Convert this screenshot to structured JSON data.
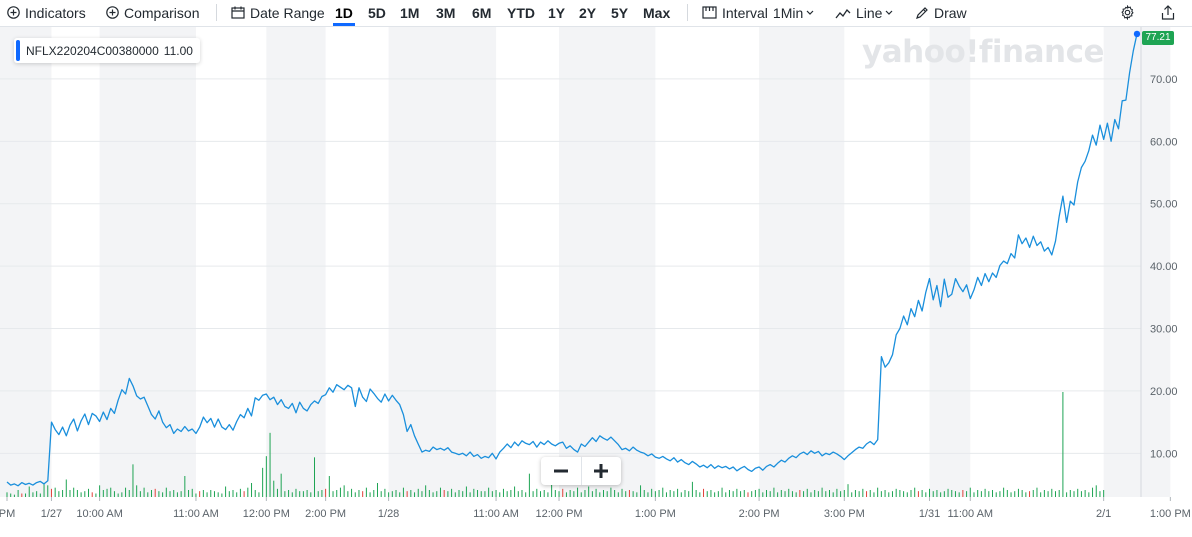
{
  "toolbar": {
    "indicators_label": "Indicators",
    "comparison_label": "Comparison",
    "date_range_label": "Date Range",
    "ranges": [
      "1D",
      "5D",
      "1M",
      "3M",
      "6M",
      "YTD",
      "1Y",
      "2Y",
      "5Y",
      "Max"
    ],
    "active_range": "1D",
    "interval_label": "Interval",
    "interval_value": "1Min",
    "chart_type_label": "Line",
    "draw_label": "Draw"
  },
  "legend": {
    "symbol": "NFLX220204C00380000",
    "value": "11.00"
  },
  "watermark": "yahoo!finance",
  "last_price_label": "77.21",
  "colors": {
    "line": "#1a8fdc",
    "up_volume": "#1ea453",
    "down_volume": "#e2413a",
    "accent": "#0f69ff",
    "shade": "#f3f4f6"
  },
  "chart_data": {
    "type": "line",
    "title": "",
    "series": [
      {
        "name": "NFLX220204C00380000",
        "values": [
          5.4,
          4.9,
          5.1,
          4.8,
          5.3,
          5.0,
          5.2,
          4.9,
          5.3,
          5.5,
          5.1,
          5.6,
          15.0,
          13.8,
          13.0,
          14.2,
          12.8,
          14.5,
          15.5,
          13.6,
          15.2,
          16.3,
          14.6,
          16.4,
          16.0,
          15.1,
          16.6,
          15.4,
          17.2,
          16.4,
          18.5,
          20.2,
          19.5,
          22.0,
          20.8,
          19.2,
          18.7,
          19.0,
          17.6,
          16.2,
          15.5,
          16.8,
          15.0,
          14.1,
          14.6,
          13.2,
          13.9,
          13.5,
          14.3,
          13.6,
          13.9,
          13.2,
          14.2,
          15.8,
          14.9,
          15.6,
          14.2,
          15.5,
          14.2,
          13.8,
          14.6,
          13.7,
          15.1,
          16.2,
          15.7,
          17.2,
          16.0,
          18.9,
          18.5,
          19.3,
          19.5,
          18.6,
          19.0,
          17.8,
          18.6,
          17.5,
          17.2,
          18.0,
          16.5,
          18.2,
          17.2,
          16.8,
          17.8,
          18.4,
          18.0,
          19.1,
          19.4,
          20.5,
          19.8,
          21.0,
          20.6,
          20.2,
          20.9,
          20.5,
          17.5,
          20.5,
          19.0,
          18.3,
          20.3,
          19.6,
          18.8,
          18.2,
          19.5,
          18.4,
          19.3,
          18.5,
          17.8,
          16.2,
          13.5,
          14.6,
          12.8,
          11.5,
          10.2,
          10.5,
          10.3,
          11.0,
          10.6,
          10.8,
          10.5,
          10.9,
          10.2,
          10.0,
          9.8,
          10.0,
          9.6,
          10.2,
          9.5,
          9.8,
          9.2,
          9.5,
          9.3,
          10.0,
          9.1,
          10.2,
          10.8,
          11.5,
          10.9,
          11.8,
          11.2,
          12.0,
          11.6,
          11.4,
          11.9,
          11.0,
          11.8,
          11.4,
          12.0,
          11.5,
          11.2,
          11.6,
          11.8,
          10.8,
          11.2,
          10.6,
          10.2,
          11.5,
          11.1,
          11.8,
          12.5,
          11.9,
          12.8,
          12.4,
          12.1,
          12.6,
          12.0,
          11.4,
          10.6,
          10.8,
          10.4,
          11.0,
          10.5,
          10.2,
          10.0,
          9.6,
          9.9,
          9.4,
          9.2,
          9.5,
          9.1,
          8.8,
          9.3,
          8.6,
          9.0,
          8.5,
          8.2,
          8.7,
          8.3,
          7.8,
          8.1,
          7.7,
          8.2,
          7.6,
          8.0,
          7.7,
          7.9,
          7.5,
          7.8,
          7.2,
          7.6,
          7.9,
          7.4,
          7.1,
          7.6,
          7.8,
          7.3,
          7.9,
          8.2,
          7.8,
          8.4,
          8.9,
          8.6,
          9.2,
          9.6,
          9.3,
          9.9,
          10.2,
          9.8,
          10.4,
          10.0,
          10.3,
          9.6,
          10.0,
          9.8,
          10.2,
          9.9,
          9.5,
          9.0,
          9.6,
          10.1,
          10.6,
          11.0,
          10.8,
          11.5,
          11.9,
          11.4,
          12.2,
          25.5,
          23.8,
          24.5,
          25.8,
          29.0,
          30.0,
          32.0,
          30.6,
          33.2,
          31.9,
          34.5,
          32.8,
          35.8,
          38.0,
          34.6,
          36.9,
          33.5,
          37.9,
          35.0,
          35.5,
          38.0,
          36.8,
          35.9,
          37.0,
          34.8,
          36.2,
          38.2,
          36.9,
          38.8,
          37.5,
          38.9,
          38.2,
          40.1,
          40.8,
          40.4,
          42.0,
          41.3,
          45.0,
          43.6,
          44.5,
          43.0,
          44.8,
          43.3,
          43.9,
          42.4,
          43.0,
          41.8,
          44.0,
          48.0,
          51.2,
          47.0,
          50.4,
          49.8,
          53.5,
          55.8,
          56.8,
          58.5,
          61.0,
          59.4,
          62.6,
          60.3,
          62.9,
          60.0,
          63.5,
          62.0,
          66.5,
          66.6,
          71.0,
          74.5,
          77.21
        ]
      }
    ],
    "volume": [
      0.4,
      0.3,
      0.2,
      0.6,
      0.3,
      0.3,
      0.9,
      0.4,
      0.5,
      0.3,
      1.2,
      1.0,
      0.7,
      0.8,
      0.5,
      0.6,
      1.5,
      0.6,
      0.8,
      0.6,
      0.4,
      0.5,
      0.7,
      0.4,
      0.3,
      1.0,
      0.6,
      0.7,
      0.8,
      0.5,
      0.3,
      0.4,
      0.8,
      0.6,
      2.8,
      1.0,
      0.5,
      0.8,
      0.4,
      0.6,
      0.7,
      0.5,
      0.4,
      0.8,
      0.5,
      0.6,
      0.4,
      0.5,
      1.8,
      0.6,
      0.7,
      0.3,
      0.5,
      0.6,
      0.4,
      0.6,
      0.5,
      0.4,
      0.3,
      0.9,
      0.5,
      0.6,
      0.4,
      0.7,
      0.5,
      0.8,
      1.2,
      0.6,
      0.4,
      2.5,
      3.5,
      5.5,
      1.4,
      0.7,
      2.0,
      0.5,
      0.6,
      0.4,
      0.7,
      0.5,
      0.5,
      0.6,
      0.4,
      3.4,
      0.5,
      0.6,
      0.7,
      1.8,
      0.5,
      0.6,
      0.8,
      1.0,
      0.5,
      0.7,
      0.4,
      0.6,
      0.5,
      0.8,
      0.4,
      0.6,
      1.2,
      0.5,
      0.7,
      0.4,
      0.5,
      0.6,
      0.4,
      0.8,
      0.5,
      0.6,
      0.4,
      0.7,
      0.5,
      1.0,
      0.6,
      0.4,
      0.5,
      0.8,
      0.6,
      0.5,
      0.7,
      0.4,
      0.6,
      0.5,
      0.9,
      0.4,
      0.7,
      0.6,
      0.5,
      0.5,
      0.8,
      0.5,
      0.6,
      0.4,
      0.7,
      0.5,
      0.6,
      0.9,
      0.5,
      0.6,
      0.4,
      2.0,
      0.5,
      0.7,
      0.5,
      0.6,
      0.4,
      1.3,
      0.6,
      0.5,
      0.7,
      0.4,
      0.6,
      0.5,
      0.8,
      0.4,
      0.6,
      0.9,
      0.5,
      0.7,
      0.4,
      0.6,
      0.5,
      0.8,
      0.6,
      0.4,
      0.7,
      0.5,
      0.6,
      0.5,
      0.4,
      1.0,
      0.6,
      0.4,
      0.7,
      0.5,
      0.6,
      0.8,
      0.4,
      0.6,
      0.5,
      0.7,
      0.4,
      0.6,
      0.5,
      1.3,
      0.6,
      0.4,
      0.7,
      0.5,
      0.6,
      0.4,
      0.5,
      0.8,
      0.4,
      0.6,
      0.5,
      0.7,
      0.5,
      0.6,
      0.4,
      0.5,
      0.6,
      0.7,
      0.4,
      0.6,
      0.5,
      0.8,
      0.4,
      0.6,
      0.5,
      0.7,
      0.5,
      0.4,
      0.6,
      0.5,
      0.7,
      0.4,
      0.6,
      0.5,
      0.8,
      0.5,
      0.6,
      0.4,
      0.7,
      0.5,
      0.6,
      1.1,
      0.4,
      0.6,
      0.5,
      0.7,
      0.5,
      0.6,
      0.4,
      0.8,
      0.5,
      0.6,
      0.4,
      0.5,
      0.7,
      0.6,
      0.5,
      0.4,
      0.6,
      0.8,
      0.5,
      0.6,
      0.4,
      0.7,
      0.5,
      0.6,
      0.4,
      0.5,
      0.7,
      0.6,
      0.5,
      0.4,
      0.6,
      0.5,
      0.8,
      0.4,
      0.6,
      0.5,
      0.7,
      0.5,
      0.6,
      0.4,
      0.5,
      0.8,
      0.6,
      0.4,
      0.5,
      0.7,
      0.6,
      0.4,
      0.5,
      0.6,
      0.8,
      0.4,
      0.6,
      0.5,
      0.7,
      0.5,
      0.6,
      9.0,
      0.4,
      0.6,
      0.5,
      0.7,
      0.5,
      0.6,
      0.4,
      0.8,
      1.0,
      0.5,
      0.6
    ],
    "volume_down": [
      4,
      12,
      23,
      40,
      52,
      64,
      86,
      96,
      108,
      118,
      150,
      168,
      188,
      200,
      214,
      232,
      246,
      258,
      276,
      300
    ],
    "ylim": [
      3,
      78
    ],
    "y_ticks": [
      10,
      20,
      30,
      40,
      50,
      60,
      70
    ],
    "y_tick_labels": [
      "10.00",
      "20.00",
      "30.00",
      "40.00",
      "50.00",
      "60.00",
      "70.00"
    ],
    "x_ticks": [
      0,
      12,
      25,
      51,
      70,
      86,
      103,
      132,
      149,
      175,
      203,
      226,
      249,
      260,
      296,
      314
    ],
    "x_tick_labels": [
      "PM",
      "1/27",
      "10:00 AM",
      "11:00 AM",
      "12:00 PM",
      "2:00 PM",
      "1/28",
      "11:00 AM",
      "12:00 PM",
      "1:00 PM",
      "2:00 PM",
      "3:00 PM",
      "1/31",
      "11:00 AM",
      "2/1",
      "1:00 PM"
    ],
    "shaded_bands": [
      [
        0,
        12
      ],
      [
        25,
        51
      ],
      [
        70,
        86
      ],
      [
        103,
        132
      ],
      [
        149,
        175
      ],
      [
        203,
        226
      ],
      [
        249,
        260
      ],
      [
        296,
        314
      ]
    ],
    "grid": true,
    "last_value": 77.21
  }
}
